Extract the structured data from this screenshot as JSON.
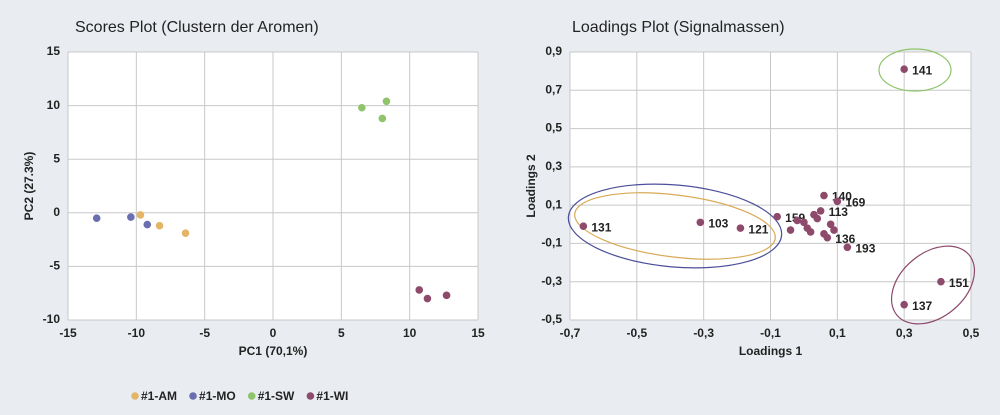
{
  "chart_data": [
    {
      "type": "scatter",
      "title": "Scores Plot (Clustern der Aromen)",
      "xlabel": "PC1 (70,1%)",
      "ylabel": "PC2 (27.3%)",
      "xlim": [
        -15,
        15
      ],
      "ylim": [
        -10,
        15
      ],
      "xticks": [
        -15,
        -10,
        -5,
        0,
        5,
        10,
        15
      ],
      "yticks": [
        -10,
        -5,
        0,
        5,
        10,
        15
      ],
      "grid": true,
      "legend": "bottom",
      "series": [
        {
          "name": "#1-AM",
          "color": "#e5b567",
          "x": [
            -9.7,
            -8.3,
            -6.4
          ],
          "values": [
            -0.2,
            -1.2,
            -1.9
          ]
        },
        {
          "name": "#1-MO",
          "color": "#6a6fb0",
          "x": [
            -12.9,
            -10.4,
            -9.2
          ],
          "values": [
            -0.5,
            -0.4,
            -1.1
          ]
        },
        {
          "name": "#1-SW",
          "color": "#8fc46a",
          "x": [
            6.5,
            8.3,
            8.0
          ],
          "values": [
            9.8,
            10.4,
            8.8
          ]
        },
        {
          "name": "#1-WI",
          "color": "#8e4a6b",
          "x": [
            10.7,
            11.3,
            12.7
          ],
          "values": [
            -7.2,
            -8.0,
            -7.7
          ]
        }
      ]
    },
    {
      "type": "scatter",
      "title": "Loadings Plot (Signalmassen)",
      "xlabel": "Loadings 1",
      "ylabel": "Loadings 2",
      "xlim": [
        -0.7,
        0.5
      ],
      "ylim": [
        -0.5,
        0.9
      ],
      "xticks": [
        {
          "value": -0.7,
          "label": "-0,7"
        },
        {
          "value": -0.5,
          "label": "-0,5"
        },
        {
          "value": -0.3,
          "label": "-0,3"
        },
        {
          "value": -0.1,
          "label": "-0,1"
        },
        {
          "value": 0.1,
          "label": "0,1"
        },
        {
          "value": 0.3,
          "label": "0,3"
        },
        {
          "value": 0.5,
          "label": "0,5"
        }
      ],
      "yticks": [
        {
          "value": -0.5,
          "label": "-0,5"
        },
        {
          "value": -0.3,
          "label": "-0,3"
        },
        {
          "value": -0.1,
          "label": "-0,1"
        },
        {
          "value": 0.1,
          "label": "0,1"
        },
        {
          "value": 0.3,
          "label": "0,3"
        },
        {
          "value": 0.5,
          "label": "0,5"
        },
        {
          "value": 0.7,
          "label": "0,7"
        },
        {
          "value": 0.9,
          "label": "0,9"
        }
      ],
      "grid": true,
      "series": [
        {
          "color": "#8e4a6b",
          "x": [
            0.3,
            -0.66,
            -0.31,
            -0.19,
            0.06,
            0.1,
            0.41,
            0.3,
            0.13,
            0.07,
            -0.08,
            0.05,
            -0.04,
            0.0,
            0.02,
            0.04,
            0.08,
            0.09,
            0.03,
            -0.02,
            0.06,
            0.01
          ],
          "values": [
            0.81,
            -0.01,
            0.01,
            -0.02,
            0.15,
            0.12,
            -0.3,
            -0.42,
            -0.12,
            -0.07,
            0.04,
            0.07,
            -0.03,
            0.01,
            -0.04,
            0.03,
            0.0,
            -0.03,
            0.05,
            0.02,
            -0.05,
            -0.02
          ],
          "labels": [
            "141",
            "131",
            "103",
            "121",
            "140",
            "169",
            "151",
            "137",
            "193",
            "136",
            "159",
            "113",
            null,
            null,
            null,
            null,
            null,
            null,
            null,
            null,
            null,
            null
          ]
        }
      ]
    }
  ]
}
